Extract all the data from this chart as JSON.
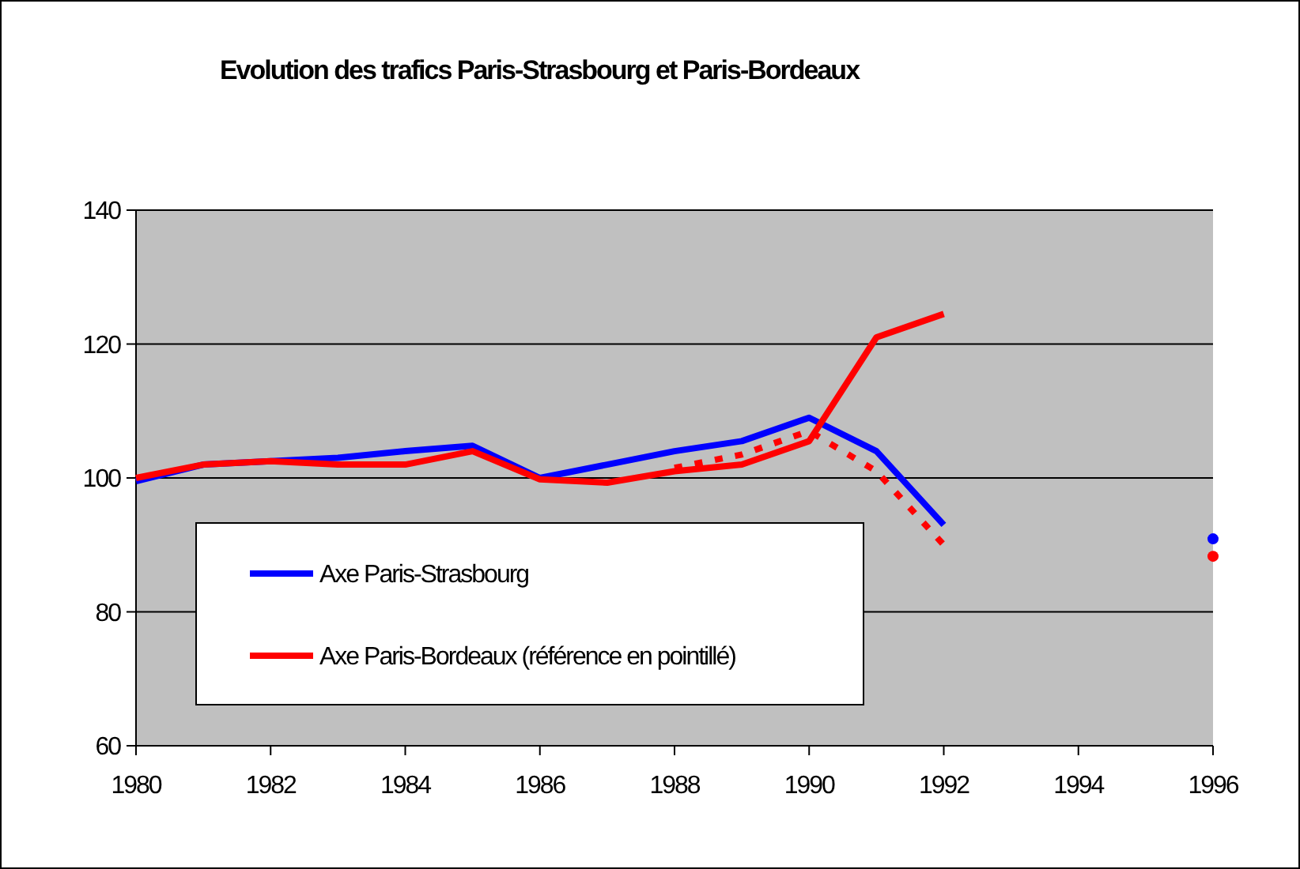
{
  "chart_data": {
    "type": "line",
    "title": "Evolution des trafics Paris-Strasbourg et Paris-Bordeaux",
    "x": [
      1980,
      1981,
      1982,
      1983,
      1984,
      1985,
      1986,
      1987,
      1988,
      1989,
      1990,
      1991,
      1992,
      1993,
      1994,
      1995,
      1996
    ],
    "series": [
      {
        "name": "Axe Paris-Strasbourg",
        "color": "#0000ff",
        "values": [
          99.5,
          102,
          102.5,
          103,
          104,
          104.8,
          100,
          102,
          104,
          105.5,
          109,
          104,
          93,
          null,
          null,
          null,
          90.9
        ]
      },
      {
        "name": "Axe Paris-Bordeaux (référence en pointillé)",
        "color": "#ff0000",
        "values": [
          100,
          102,
          102.5,
          102,
          102,
          104,
          99.8,
          99.3,
          101,
          102,
          105.5,
          121,
          124.5,
          null,
          null,
          null,
          88.3
        ]
      },
      {
        "color": "#ff0000",
        "line_style": "dotted",
        "x": [
          1988,
          1989,
          1990,
          1991,
          1992
        ],
        "values": [
          101.5,
          103.5,
          107,
          101,
          90
        ]
      }
    ],
    "xlim": [
      1980,
      1996
    ],
    "xticks": [
      1980,
      1982,
      1984,
      1986,
      1988,
      1990,
      1992,
      1994,
      1996
    ],
    "ylim": [
      60,
      140
    ],
    "yticks": [
      60,
      80,
      100,
      120,
      140
    ],
    "grid": "y",
    "legend": "bottom left"
  }
}
